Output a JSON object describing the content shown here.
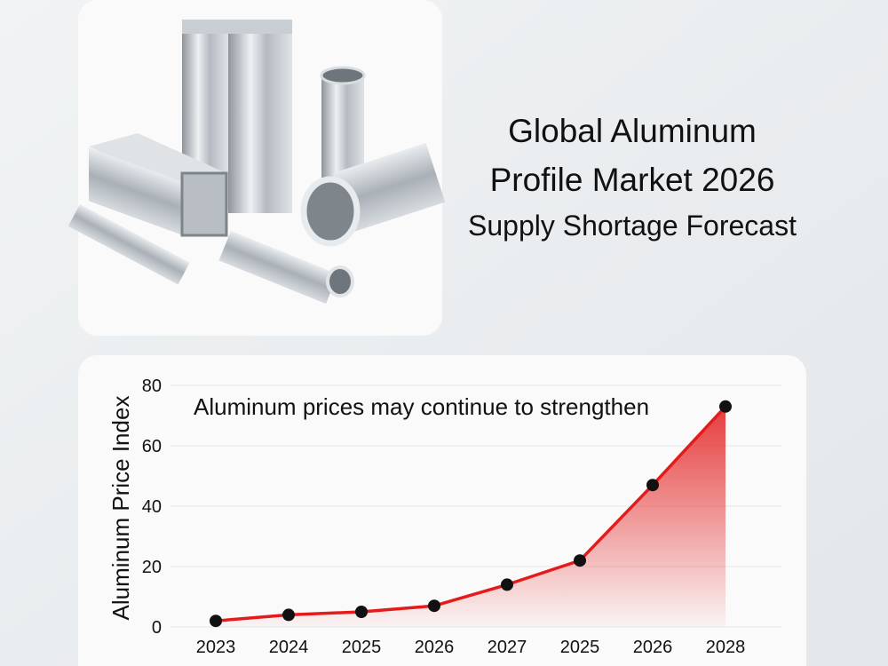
{
  "title": [
    "Global Aluminum",
    "Profile Market 2026",
    "Supply Shortage Forecast"
  ],
  "chart_data": {
    "type": "line",
    "annotation": "Aluminum prices may continue to strengthen",
    "y_label": "Aluminum Price Index",
    "categories": [
      "2023",
      "2024",
      "2025",
      "2026",
      "2027",
      "2025",
      "2026",
      "2028"
    ],
    "values": [
      2,
      4,
      5,
      7,
      14,
      22,
      47,
      73
    ],
    "color": "#e31b1b",
    "ylim": [
      0,
      80
    ],
    "yticks": [
      0,
      20,
      40,
      60,
      80
    ],
    "grid": true
  }
}
